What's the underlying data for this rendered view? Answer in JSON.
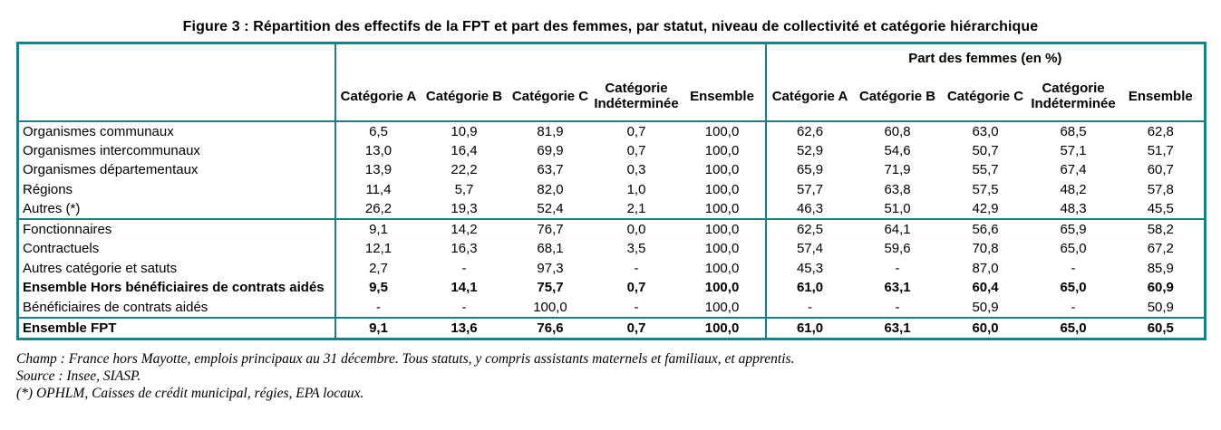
{
  "title": "Figure 3 : Répartition des effectifs de la FPT et part des femmes, par statut, niveau de collectivité et catégorie hiérarchique",
  "colors": {
    "border_teal": "#17808a",
    "text": "#000000",
    "background": "#ffffff"
  },
  "table": {
    "femmes_header": "Part des femmes (en %)",
    "columns": [
      "Catégorie A",
      "Catégorie B",
      "Catégorie C",
      "Catégorie\nIndéterminée",
      "Ensemble"
    ],
    "rows": [
      {
        "label": "Organismes communaux",
        "section": "collectivite",
        "bold": false,
        "effectifs": [
          "6,5",
          "10,9",
          "81,9",
          "0,7",
          "100,0"
        ],
        "femmes": [
          "62,6",
          "60,8",
          "63,0",
          "68,5",
          "62,8"
        ]
      },
      {
        "label": "Organismes intercommunaux",
        "section": "collectivite",
        "bold": false,
        "effectifs": [
          "13,0",
          "16,4",
          "69,9",
          "0,7",
          "100,0"
        ],
        "femmes": [
          "52,9",
          "54,6",
          "50,7",
          "57,1",
          "51,7"
        ]
      },
      {
        "label": "Organismes départementaux",
        "section": "collectivite",
        "bold": false,
        "effectifs": [
          "13,9",
          "22,2",
          "63,7",
          "0,3",
          "100,0"
        ],
        "femmes": [
          "65,9",
          "71,9",
          "55,7",
          "67,4",
          "60,7"
        ]
      },
      {
        "label": "Régions",
        "section": "collectivite",
        "bold": false,
        "effectifs": [
          "11,4",
          "5,7",
          "82,0",
          "1,0",
          "100,0"
        ],
        "femmes": [
          "57,7",
          "63,8",
          "57,5",
          "48,2",
          "57,8"
        ]
      },
      {
        "label": "Autres (*)",
        "section": "collectivite",
        "bold": false,
        "effectifs": [
          "26,2",
          "19,3",
          "52,4",
          "2,1",
          "100,0"
        ],
        "femmes": [
          "46,3",
          "51,0",
          "42,9",
          "48,3",
          "45,5"
        ]
      },
      {
        "label": "Fonctionnaires",
        "section": "statut",
        "bold": false,
        "effectifs": [
          "9,1",
          "14,2",
          "76,7",
          "0,0",
          "100,0"
        ],
        "femmes": [
          "62,5",
          "64,1",
          "56,6",
          "65,9",
          "58,2"
        ]
      },
      {
        "label": "Contractuels",
        "section": "statut",
        "bold": false,
        "effectifs": [
          "12,1",
          "16,3",
          "68,1",
          "3,5",
          "100,0"
        ],
        "femmes": [
          "57,4",
          "59,6",
          "70,8",
          "65,0",
          "67,2"
        ]
      },
      {
        "label": "Autres catégorie et satuts",
        "section": "statut",
        "bold": false,
        "effectifs": [
          "2,7",
          "-",
          "97,3",
          "-",
          "100,0"
        ],
        "femmes": [
          "45,3",
          "-",
          "87,0",
          "-",
          "85,9"
        ]
      },
      {
        "label": "Ensemble Hors bénéficiaires de contrats aidés",
        "section": "statut",
        "bold": true,
        "effectifs": [
          "9,5",
          "14,1",
          "75,7",
          "0,7",
          "100,0"
        ],
        "femmes": [
          "61,0",
          "63,1",
          "60,4",
          "65,0",
          "60,9"
        ]
      },
      {
        "label": "Bénéficiaires de contrats aidés",
        "section": "statut",
        "bold": false,
        "effectifs": [
          "-",
          "-",
          "100,0",
          "-",
          "100,0"
        ],
        "femmes": [
          "-",
          "-",
          "50,9",
          "-",
          "50,9"
        ]
      },
      {
        "label": "Ensemble FPT",
        "section": "total",
        "bold": true,
        "effectifs": [
          "9,1",
          "13,6",
          "76,6",
          "0,7",
          "100,0"
        ],
        "femmes": [
          "61,0",
          "63,1",
          "60,0",
          "65,0",
          "60,5"
        ]
      }
    ]
  },
  "notes": [
    "Champ : France hors Mayotte, emplois principaux au 31 décembre. Tous statuts, y compris assistants maternels et familiaux, et apprentis.",
    "Source : Insee, SIASP.",
    "(*) OPHLM, Caisses de crédit municipal, régies, EPA locaux."
  ]
}
